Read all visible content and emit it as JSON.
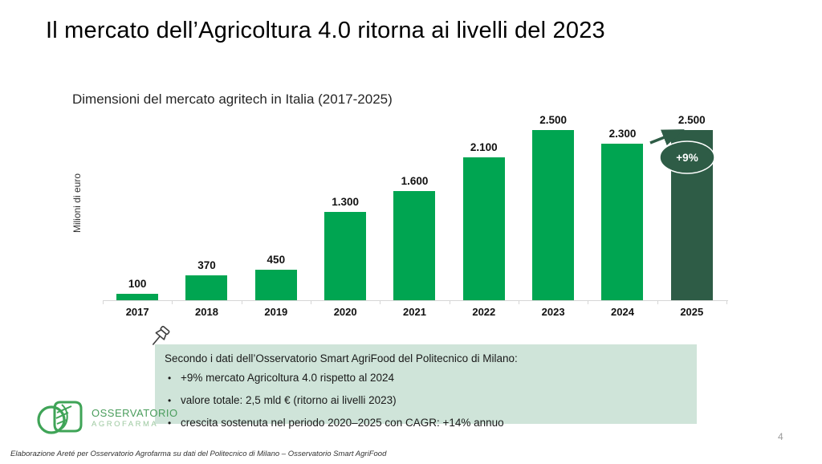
{
  "slide": {
    "title": "Il mercato dell’Agricoltura 4.0 ritorna ai livelli del 2023",
    "page_number": "4",
    "footer": "Elaborazione Areté per Osservatorio Agrofarma su dati del Politecnico di Milano – Osservatorio Smart AgriFood"
  },
  "chart": {
    "title": "Dimensioni del mercato agritech in Italia (2017-2025)",
    "ylabel": "Milioni di euro"
  },
  "chart_data": {
    "type": "bar",
    "title": "Dimensioni del mercato agritech in Italia (2017-2025)",
    "ylabel": "Milioni di euro",
    "xlabel": "",
    "categories": [
      "2017",
      "2018",
      "2019",
      "2020",
      "2021",
      "2022",
      "2023",
      "2024",
      "2025"
    ],
    "values": [
      100,
      370,
      450,
      1300,
      1600,
      2100,
      2500,
      2300,
      2500
    ],
    "value_labels": [
      "100",
      "370",
      "450",
      "1.300",
      "1.600",
      "2.100",
      "2.500",
      "2.300",
      "2.500"
    ],
    "ylim": [
      0,
      2500
    ],
    "grid": false,
    "legend": "none",
    "highlight_index": 8,
    "annotation": {
      "label": "+9%",
      "from_category": "2024",
      "to_category": "2025"
    }
  },
  "callout": {
    "label": "+9%"
  },
  "note_box": {
    "heading": "Secondo i dati dell’Osservatorio Smart AgriFood del Politecnico di Milano:",
    "bullets": [
      "+9% mercato Agricoltura 4.0 rispetto al 2024",
      "valore totale: 2,5 mld € (ritorno ai livelli 2023)",
      "crescita sostenuta nel periodo 2020–2025 con CAGR: +14% annuo"
    ]
  },
  "logo": {
    "line1": "OSSERVATORIO",
    "line2": "AGROFARMA"
  },
  "colors": {
    "bar_green": "#00a551",
    "bar_dark_green": "#2e5c46",
    "note_bg": "#cfe4d9",
    "axis_gray": "#d6d6d6"
  }
}
